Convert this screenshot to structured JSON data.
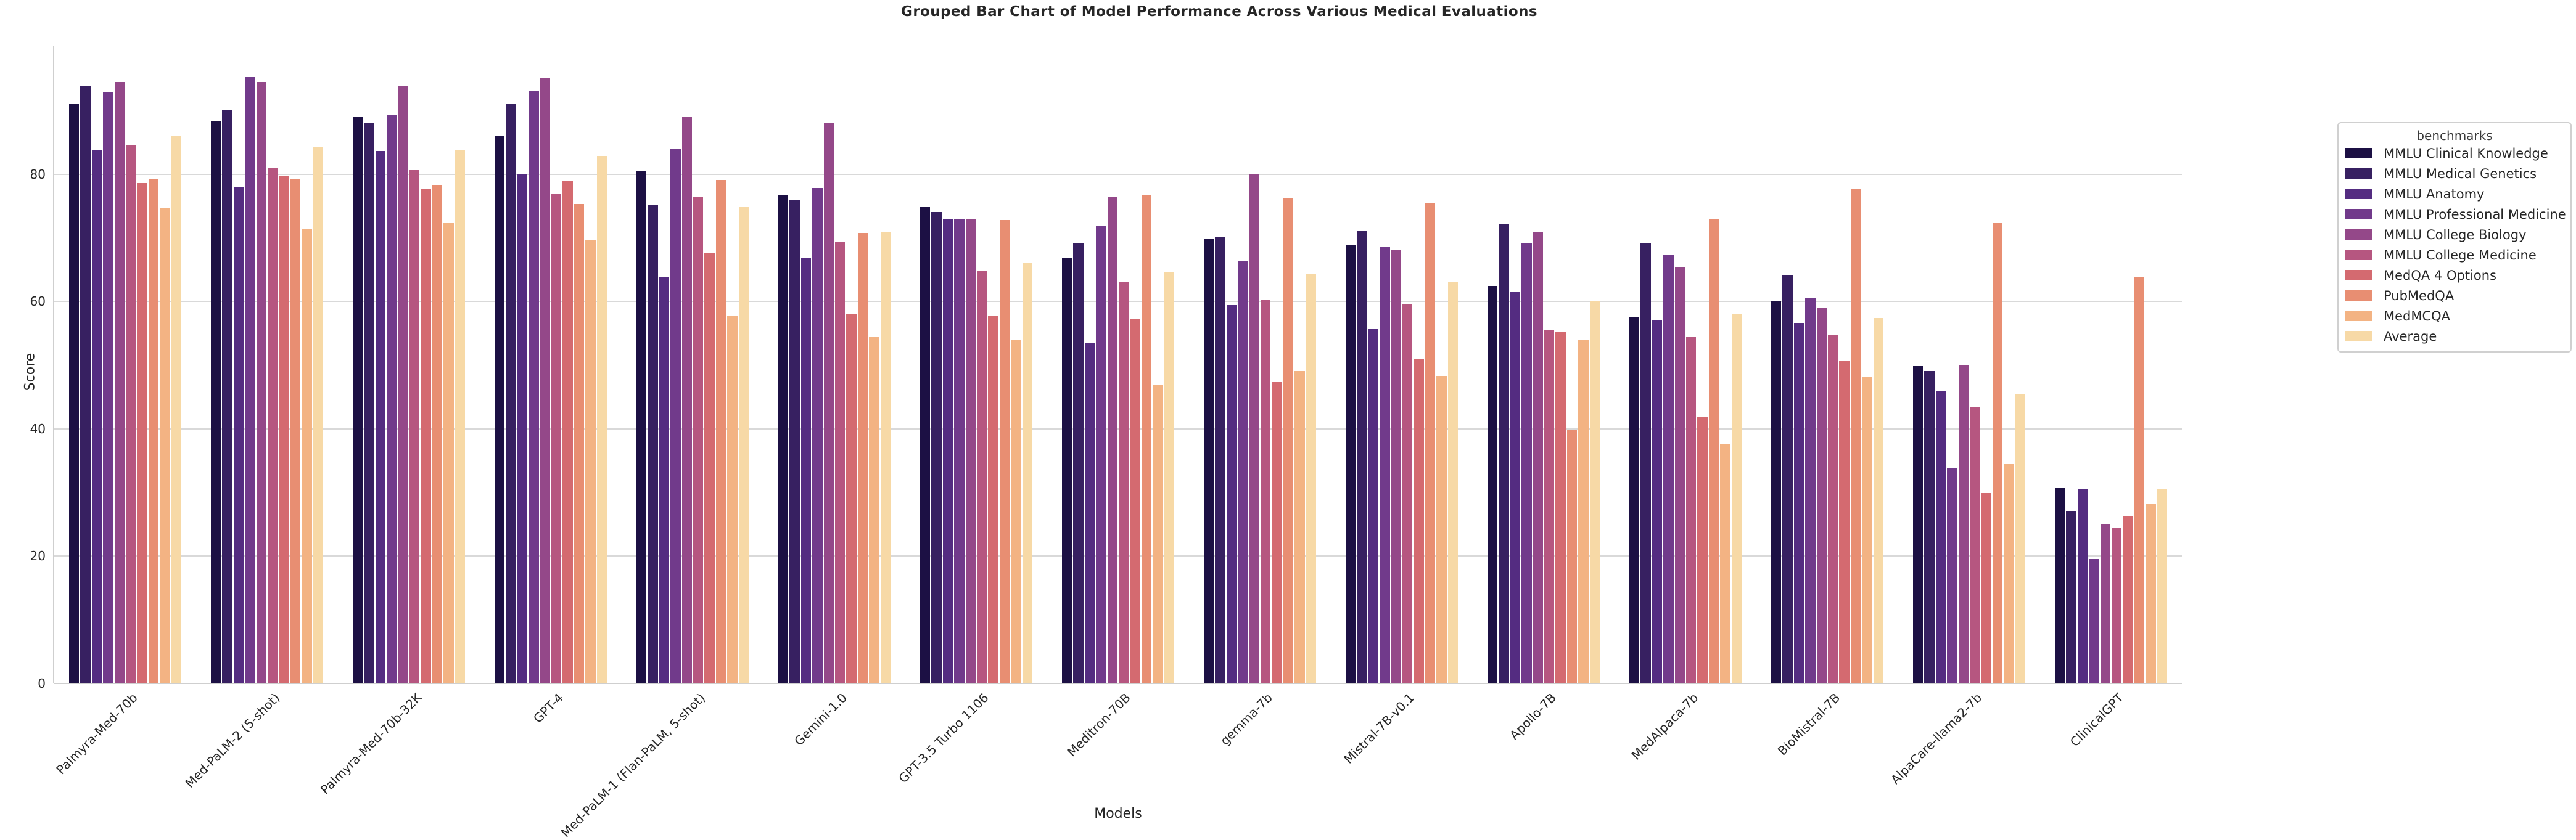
{
  "title": "Grouped Bar Chart of Model Performance Across Various Medical Evaluations",
  "chart_data": {
    "type": "bar",
    "title": "Grouped Bar Chart of Model Performance Across Various Medical Evaluations",
    "xlabel": "Models",
    "ylabel": "Score",
    "ylim": [
      0,
      100
    ],
    "yticks": [
      0,
      20,
      40,
      60,
      80
    ],
    "grid": "horizontal",
    "legend_title": "benchmarks",
    "legend_position": "right",
    "categories": [
      "Palmyra-Med-70b",
      "Med-PaLM-2 (5-shot)",
      "Palmyra-Med-70b-32K",
      "GPT-4",
      "Med-PaLM-1 (Flan-PaLM, 5-shot)",
      "Gemini-1.0",
      "GPT-3.5 Turbo 1106",
      "Meditron-70B",
      "gemma-7b",
      "Mistral-7B-v0.1",
      "Apollo-7B",
      "MedAlpaca-7b",
      "BioMistral-7B",
      "AlpaCare-llama2-7b",
      "ClinicalGPT"
    ],
    "series": [
      {
        "name": "MMLU Clinical Knowledge",
        "color": "#1c1044",
        "values": [
          90.9,
          88.3,
          88.9,
          86.0,
          80.4,
          76.7,
          74.7,
          66.8,
          69.8,
          68.7,
          62.3,
          57.4,
          59.9,
          49.8,
          30.6
        ]
      },
      {
        "name": "MMLU Medical Genetics",
        "color": "#372061",
        "values": [
          93.8,
          90.0,
          88.0,
          91.0,
          75.0,
          75.8,
          74.0,
          69.0,
          70.0,
          71.0,
          72.0,
          69.0,
          64.0,
          49.0,
          27.0
        ]
      },
      {
        "name": "MMLU Anatomy",
        "color": "#542c81",
        "values": [
          83.7,
          77.8,
          83.5,
          80.0,
          63.7,
          66.7,
          72.8,
          53.3,
          59.3,
          55.6,
          61.5,
          57.0,
          56.5,
          45.9,
          30.4
        ]
      },
      {
        "name": "MMLU Professional Medicine",
        "color": "#713a8b",
        "values": [
          92.8,
          95.2,
          89.3,
          93.0,
          83.8,
          77.7,
          72.8,
          71.7,
          66.2,
          68.4,
          69.1,
          67.3,
          60.4,
          33.8,
          19.5
        ]
      },
      {
        "name": "MMLU College Biology",
        "color": "#944889",
        "values": [
          94.4,
          94.4,
          93.7,
          95.1,
          88.9,
          88.0,
          72.9,
          76.4,
          79.9,
          68.1,
          70.8,
          65.3,
          59.0,
          50.0,
          25.0
        ]
      },
      {
        "name": "MMLU College Medicine",
        "color": "#b65680",
        "values": [
          84.4,
          80.9,
          80.5,
          76.9,
          76.3,
          69.2,
          64.7,
          63.0,
          60.1,
          59.5,
          55.5,
          54.3,
          54.7,
          43.4,
          24.3
        ]
      },
      {
        "name": "MedQA 4 Options",
        "color": "#d46a70",
        "values": [
          78.5,
          79.7,
          77.5,
          78.9,
          67.6,
          58.0,
          57.7,
          57.1,
          47.2,
          50.8,
          55.2,
          41.7,
          50.6,
          29.8,
          26.1
        ]
      },
      {
        "name": "PubMedQA",
        "color": "#e88e72",
        "values": [
          79.2,
          79.2,
          78.2,
          75.2,
          79.0,
          70.7,
          72.7,
          76.6,
          76.2,
          75.4,
          39.8,
          72.8,
          77.5,
          72.2,
          63.8
        ]
      },
      {
        "name": "MedMCQA",
        "color": "#f3b383",
        "values": [
          74.5,
          71.3,
          72.2,
          69.5,
          57.6,
          54.3,
          53.8,
          46.9,
          49.0,
          48.2,
          53.8,
          37.5,
          48.1,
          34.4,
          28.2
        ]
      },
      {
        "name": "Average",
        "color": "#f7d9a6",
        "values": [
          85.9,
          84.1,
          83.6,
          82.8,
          74.7,
          70.8,
          66.0,
          64.5,
          64.2,
          62.9,
          60.0,
          58.0,
          57.3,
          45.4,
          30.5
        ]
      }
    ]
  }
}
